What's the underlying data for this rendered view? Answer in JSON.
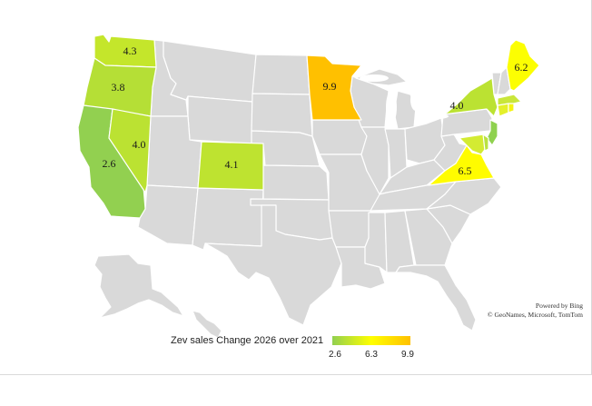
{
  "map": {
    "colors": {
      "base": "#d9d9d9",
      "low": "#92d050",
      "mid": "#ffff00",
      "high": "#ffc000"
    },
    "states": [
      {
        "state": "Washington",
        "value": "4.3"
      },
      {
        "state": "Oregon",
        "value": "3.8"
      },
      {
        "state": "California",
        "value": "2.6"
      },
      {
        "state": "Nevada",
        "value": "4.0"
      },
      {
        "state": "Colorado",
        "value": "4.1"
      },
      {
        "state": "Minnesota",
        "value": "9.9"
      },
      {
        "state": "New York",
        "value": "4.0"
      },
      {
        "state": "Maine",
        "value": "6.2"
      },
      {
        "state": "Virginia",
        "value": "6.5"
      }
    ]
  },
  "attribution": {
    "line1": "Powered by Bing",
    "line2": "© GeoNames, Microsoft, TomTom"
  },
  "legend": {
    "title": "Zev sales Change 2026 over 2021",
    "min": "2.6",
    "mid": "6.3",
    "max": "9.9"
  }
}
